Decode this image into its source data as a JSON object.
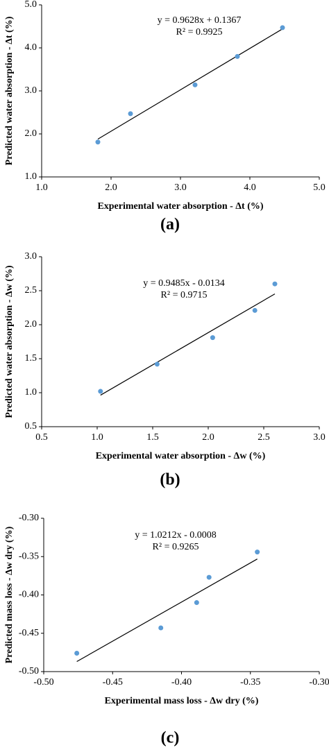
{
  "chart_data": [
    {
      "type": "scatter",
      "caption": "(a)",
      "x_label": "Experimental water absorption - Δt (%)",
      "y_label": "Predicted water absorption - Δt (%)",
      "x": [
        1.81,
        2.28,
        3.21,
        3.82,
        4.47
      ],
      "values": [
        1.81,
        2.47,
        3.14,
        3.8,
        4.47
      ],
      "color": "#5b9bd5",
      "trendline": {
        "slope": 0.9628,
        "intercept": 0.1367
      },
      "annotations": [
        "y = 0.9628x + 0.1367",
        "R² = 0.9925"
      ],
      "xlim": [
        1,
        5
      ],
      "ylim": [
        1,
        5
      ],
      "xticks": [
        {
          "value": 1,
          "label": "1.0"
        },
        {
          "value": 2,
          "label": "2.0"
        },
        {
          "value": 3,
          "label": "3.0"
        },
        {
          "value": 4,
          "label": "4.0"
        },
        {
          "value": 5,
          "label": "5.0"
        }
      ],
      "yticks": [
        {
          "value": 1,
          "label": "1.0"
        },
        {
          "value": 2,
          "label": "2.0"
        },
        {
          "value": 3,
          "label": "3.0"
        },
        {
          "value": 4,
          "label": "4.0"
        },
        {
          "value": 5,
          "label": "5.0"
        }
      ]
    },
    {
      "type": "scatter",
      "caption": "(b)",
      "x_label": "Experimental water absorption - Δw (%)",
      "y_label": "Predicted water absorption - Δw (%)",
      "x": [
        1.03,
        1.54,
        2.04,
        2.42,
        2.6
      ],
      "values": [
        1.02,
        1.42,
        1.81,
        2.21,
        2.6
      ],
      "color": "#5b9bd5",
      "trendline": {
        "slope": 0.9485,
        "intercept": -0.0134
      },
      "annotations": [
        "y = 0.9485x - 0.0134",
        "R² = 0.9715"
      ],
      "xlim": [
        0.5,
        3
      ],
      "ylim": [
        0.5,
        3
      ],
      "xticks": [
        0.5,
        {
          "value": 1,
          "label": "1.0"
        },
        1.5,
        {
          "value": 2,
          "label": "2.0"
        },
        2.5,
        {
          "value": 3,
          "label": "3.0"
        }
      ],
      "yticks": [
        0.5,
        {
          "value": 1,
          "label": "1.0"
        },
        1.5,
        {
          "value": 2,
          "label": "2.0"
        },
        2.5,
        {
          "value": 3,
          "label": "3.0"
        }
      ]
    },
    {
      "type": "scatter",
      "caption": "(c)",
      "x_label": "Experimental mass loss - Δw dry (%)",
      "y_label": "Predicted mass loss - Δw dry (%)",
      "x": [
        -0.476,
        -0.415,
        -0.389,
        -0.38,
        -0.345
      ],
      "values": [
        -0.476,
        -0.443,
        -0.41,
        -0.377,
        -0.344
      ],
      "color": "#5b9bd5",
      "trendline": {
        "slope": 1.0212,
        "intercept": -0.0008
      },
      "annotations": [
        "y = 1.0212x - 0.0008",
        "R² = 0.9265"
      ],
      "xlim": [
        -0.5,
        -0.3
      ],
      "ylim": [
        -0.5,
        -0.3
      ],
      "xticks": [
        {
          "value": -0.5,
          "label": "-0.50"
        },
        -0.45,
        {
          "value": -0.4,
          "label": "-0.40"
        },
        -0.35,
        {
          "value": -0.3,
          "label": "-0.30"
        }
      ],
      "yticks": [
        {
          "value": -0.5,
          "label": "-0.50"
        },
        -0.45,
        {
          "value": -0.4,
          "label": "-0.40"
        },
        -0.35,
        {
          "value": -0.3,
          "label": "-0.30"
        }
      ]
    }
  ]
}
